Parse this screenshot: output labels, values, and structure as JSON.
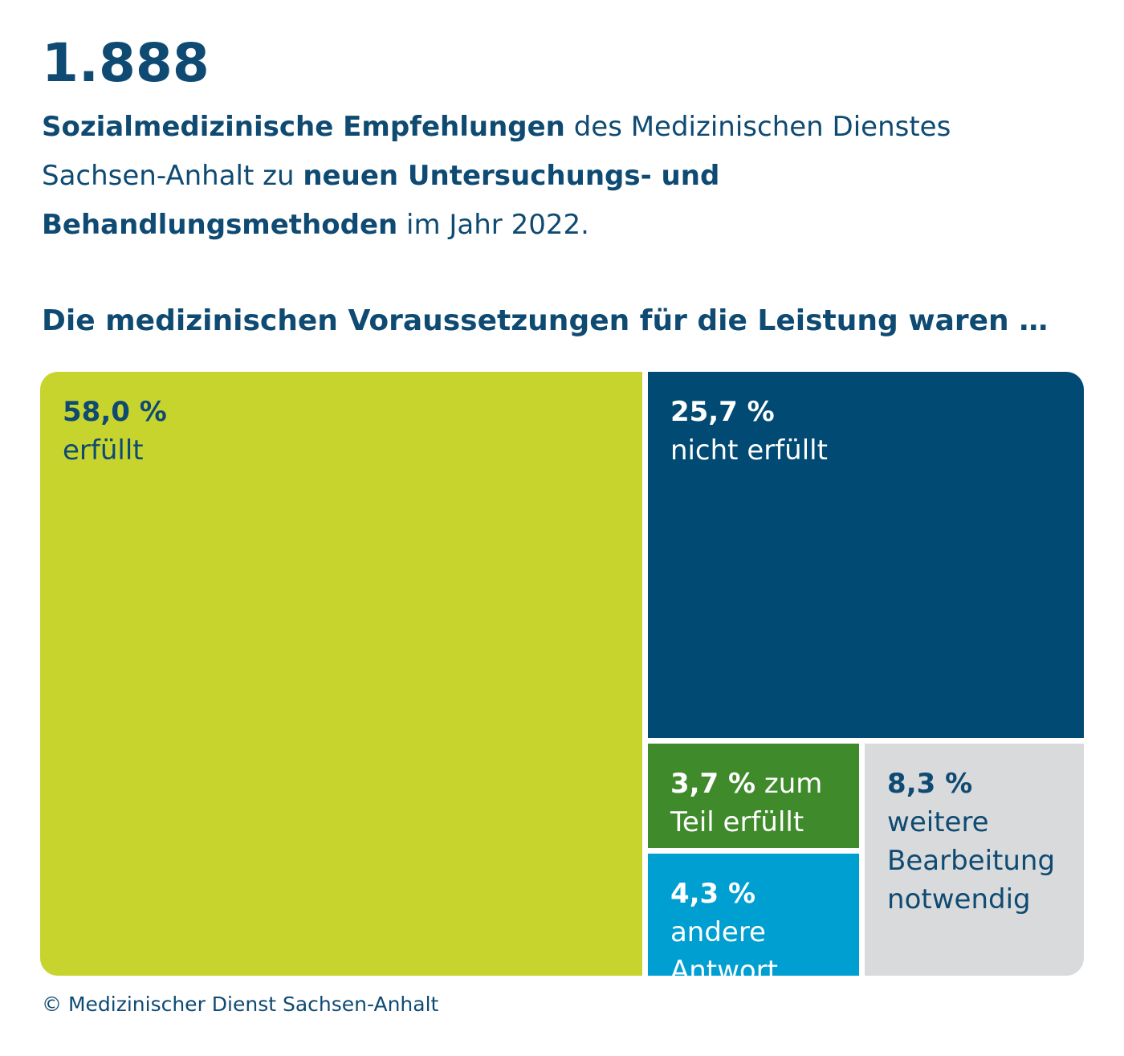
{
  "header": {
    "number": "1.888",
    "intro": [
      {
        "text": "Sozialmedizinische Empfehlungen",
        "bold": true
      },
      {
        "text": " des Medizinischen Dienstes Sachsen-Anhalt zu ",
        "bold": false
      },
      {
        "text": "neuen Untersuchungs- und Behandlungsmethoden",
        "bold": true
      },
      {
        "text": " im Jahr 2022.",
        "bold": false
      }
    ]
  },
  "chart_data": {
    "type": "treemap",
    "title": "Die medizinischen Voraussetzungen für die Leistung waren …",
    "unit": "%",
    "items": [
      {
        "value": 58.0,
        "value_label": "58,0 %",
        "label": "erfüllt",
        "color": "#c8d42e",
        "text_color": "#0e4a72"
      },
      {
        "value": 25.7,
        "value_label": "25,7 %",
        "label": "nicht erfüllt",
        "color": "#004a73",
        "text_color": "#ffffff"
      },
      {
        "value": 3.7,
        "value_label": "3,7 %",
        "label": "zum Teil erfüllt",
        "color": "#3f8a2a",
        "text_color": "#ffffff"
      },
      {
        "value": 4.3,
        "value_label": "4,3 %",
        "label": "andere Antwort",
        "color": "#009fd1",
        "text_color": "#ffffff"
      },
      {
        "value": 8.3,
        "value_label": "8,3 %",
        "label": "weitere Bearbeitung notwendig",
        "color": "#d9dadb",
        "text_color": "#0e4a72"
      }
    ]
  },
  "footer": {
    "copyright": "© Medizinischer Dienst Sachsen-Anhalt"
  }
}
